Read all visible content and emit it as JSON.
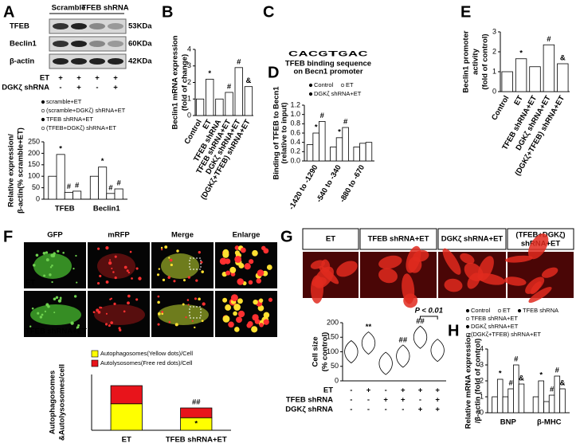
{
  "panels": [
    "A",
    "B",
    "C",
    "D",
    "E",
    "F",
    "G",
    "H"
  ],
  "blot": {
    "groups": [
      "Scramble",
      "TFEB shRNA"
    ],
    "bands": [
      {
        "name": "TFEB",
        "size": "53KDa"
      },
      {
        "name": "Beclin1",
        "size": "60KDa"
      },
      {
        "name": "β-actin",
        "size": "42KDa"
      }
    ],
    "conditions": [
      {
        "name": "ET",
        "signs": [
          "+",
          "+",
          "+",
          "+"
        ]
      },
      {
        "name": "DGKζ shRNA",
        "signs": [
          "-",
          "+",
          "-",
          "+"
        ]
      }
    ]
  },
  "logo": {
    "letters": [
      "C",
      "A",
      "C",
      "G",
      "T",
      "G",
      "A",
      "C"
    ],
    "caption": [
      "TFEB binding sequence",
      "on Becn1 promoter"
    ]
  },
  "panel_f": {
    "columns": [
      "GFP",
      "mRFP",
      "Merge",
      "Enlarge"
    ],
    "rows": [
      "ET",
      "TFEB shRNA+ET"
    ]
  },
  "panel_g": {
    "columns": [
      "ET",
      "TFEB shRNA+ET",
      "DGKζ shRNA+ET",
      [
        "(TFEB+DGKζ)",
        "shRNA+ET"
      ]
    ]
  },
  "chart_data": [
    {
      "type": "bar",
      "categories": [
        "TFEB",
        "Beclin1"
      ],
      "y_label": [
        "Relative expression/",
        "β-actin(% scramble+ET)"
      ],
      "ylim": [
        0,
        250
      ],
      "yticks": [
        0,
        50,
        100,
        150,
        200,
        250
      ],
      "series": [
        {
          "name": "scramble+ET",
          "color": "#ffffff",
          "values": [
            100,
            100
          ],
          "annotations": [
            null,
            null
          ]
        },
        {
          "name": "(scramble+DGKζ) shRNA+ET",
          "color": "#ffffff",
          "values": [
            195,
            140
          ],
          "annotations": [
            "*",
            "*"
          ]
        },
        {
          "name": "TFEB shRNA+ET",
          "color": "#ffffff",
          "values": [
            30,
            25
          ],
          "annotations": [
            "#",
            "#"
          ]
        },
        {
          "name": "(TFEB+DGKζ) shRNA+ET",
          "color": "#ffffff",
          "values": [
            35,
            45
          ],
          "annotations": [
            "#",
            "#"
          ]
        }
      ]
    },
    {
      "type": "bar",
      "categories": [
        "Control",
        "ET",
        "TFEB shRNA",
        "TFEB shRNA+ET",
        "DGKζ shRNA+ET",
        "(DGKζ+TFEB) shRNA+ET"
      ],
      "y_label": [
        "Beclin1 mRNA expression",
        "(fold of change)"
      ],
      "ylim": [
        0,
        4
      ],
      "yticks": [
        0,
        1,
        2,
        3,
        4
      ],
      "color": "#ffffff",
      "values": [
        1,
        2.2,
        1,
        1.4,
        2.9,
        1.75
      ],
      "annotations": [
        null,
        "*",
        null,
        "#",
        "#",
        "&"
      ]
    },
    {
      "type": "bar",
      "categories": [
        "-1420 to -1290",
        "-540 to -340",
        "-880 to -670"
      ],
      "y_label": [
        "Binding of TFEB to Becn1",
        "(relative to input)"
      ],
      "ylim": [
        0,
        1.2
      ],
      "yticks": [
        {
          "value": 0,
          "label": "0.0"
        },
        0.2,
        0.4,
        0.6,
        0.8,
        {
          "value": 1,
          "label": "1.0"
        },
        1.2
      ],
      "series": [
        {
          "name": "Control",
          "color": "#ffffff",
          "values": [
            0.35,
            0.3,
            0.3
          ],
          "annotations": [
            null,
            null,
            null
          ]
        },
        {
          "name": "ET",
          "color": "#ffffff",
          "values": [
            0.6,
            0.5,
            0.38
          ],
          "annotations": [
            "*",
            "*",
            null
          ]
        },
        {
          "name": "DGKζ shRNA+ET",
          "color": "#ffffff",
          "values": [
            0.85,
            0.72,
            0.4
          ],
          "annotations": [
            "#",
            "#",
            null
          ]
        }
      ]
    },
    {
      "type": "bar",
      "categories": [
        "Control",
        "ET",
        "TFEB shRNA+ET",
        "DGKζ shRNA+ET",
        "(DGKζ+TFEB) shRNA+ET"
      ],
      "y_label": [
        "Beclin1 promoter",
        "activity",
        "(fold of control)"
      ],
      "ylim": [
        0,
        3
      ],
      "yticks": [
        0,
        1,
        2,
        3
      ],
      "color": "#ffffff",
      "values": [
        1,
        1.65,
        1.25,
        2.35,
        1.4
      ],
      "annotations": [
        null,
        "*",
        null,
        "#",
        "&"
      ]
    },
    {
      "type": "bar",
      "stacked": true,
      "categories": [
        "ET",
        "TFEB shRNA+ET"
      ],
      "y_label": [
        "Autophagosomes",
        "&Autolysosomes/cell"
      ],
      "ylim": [
        0,
        40
      ],
      "series": [
        {
          "name": "Autophagosomes(Yellow dots)/Cell",
          "color": "#ffff00",
          "values": [
            19,
            9
          ],
          "annotations": [
            null,
            "*"
          ]
        },
        {
          "name": "Autolysosomes(Free red dots)/Cell",
          "color": "#e8141b",
          "values": [
            13,
            7
          ],
          "annotations": [
            null,
            "##"
          ]
        }
      ]
    },
    {
      "type": "violin",
      "categories": [
        null,
        null,
        null,
        null,
        null,
        null
      ],
      "y_label": [
        "Cell size",
        "(% control)"
      ],
      "ylim": [
        0,
        200
      ],
      "yticks": [
        0,
        50,
        100,
        150,
        200
      ],
      "color": "#ffffff",
      "values": [
        100,
        130,
        60,
        85,
        150,
        105
      ],
      "annotations": [
        null,
        "**",
        null,
        "##",
        "##",
        null
      ],
      "p_annotation": "P < 0.01",
      "conditions": [
        {
          "name": "ET",
          "signs": [
            "-",
            "+",
            "-",
            "+",
            "+",
            "+"
          ]
        },
        {
          "name": "TFEB shRNA",
          "signs": [
            "-",
            "-",
            "+",
            "+",
            "-",
            "+"
          ]
        },
        {
          "name": "DGKζ shRNA",
          "signs": [
            "-",
            "-",
            "-",
            "-",
            "+",
            "+"
          ]
        }
      ]
    },
    {
      "type": "bar",
      "categories": [
        "BNP",
        "β-MHC"
      ],
      "y_label": [
        "Relative mRNA expression",
        "/β-actin (fold of control)"
      ],
      "ylim": [
        0,
        4
      ],
      "yticks": [
        0,
        1,
        2,
        3,
        4
      ],
      "series": [
        {
          "name": "Control",
          "color": "#ffffff",
          "values": [
            1,
            1
          ],
          "annotations": [
            null,
            null
          ]
        },
        {
          "name": "ET",
          "color": "#ffffff",
          "values": [
            2.1,
            2
          ],
          "annotations": [
            "*",
            "*"
          ]
        },
        {
          "name": "TFEB shRNA",
          "color": "#ffffff",
          "values": [
            1,
            0.7
          ],
          "annotations": [
            null,
            null
          ]
        },
        {
          "name": "TFEB shRNA+ET",
          "color": "#ffffff",
          "values": [
            1.5,
            1.1
          ],
          "annotations": [
            "#",
            "#"
          ]
        },
        {
          "name": "DGKζ shRNA+ET",
          "color": "#ffffff",
          "values": [
            3,
            2.3
          ],
          "annotations": [
            "#",
            "#"
          ]
        },
        {
          "name": "(DGKζ+TFEB) shRNA+ET",
          "color": "#ffffff",
          "values": [
            1.8,
            1.5
          ],
          "annotations": [
            "&",
            "&"
          ]
        }
      ]
    }
  ]
}
